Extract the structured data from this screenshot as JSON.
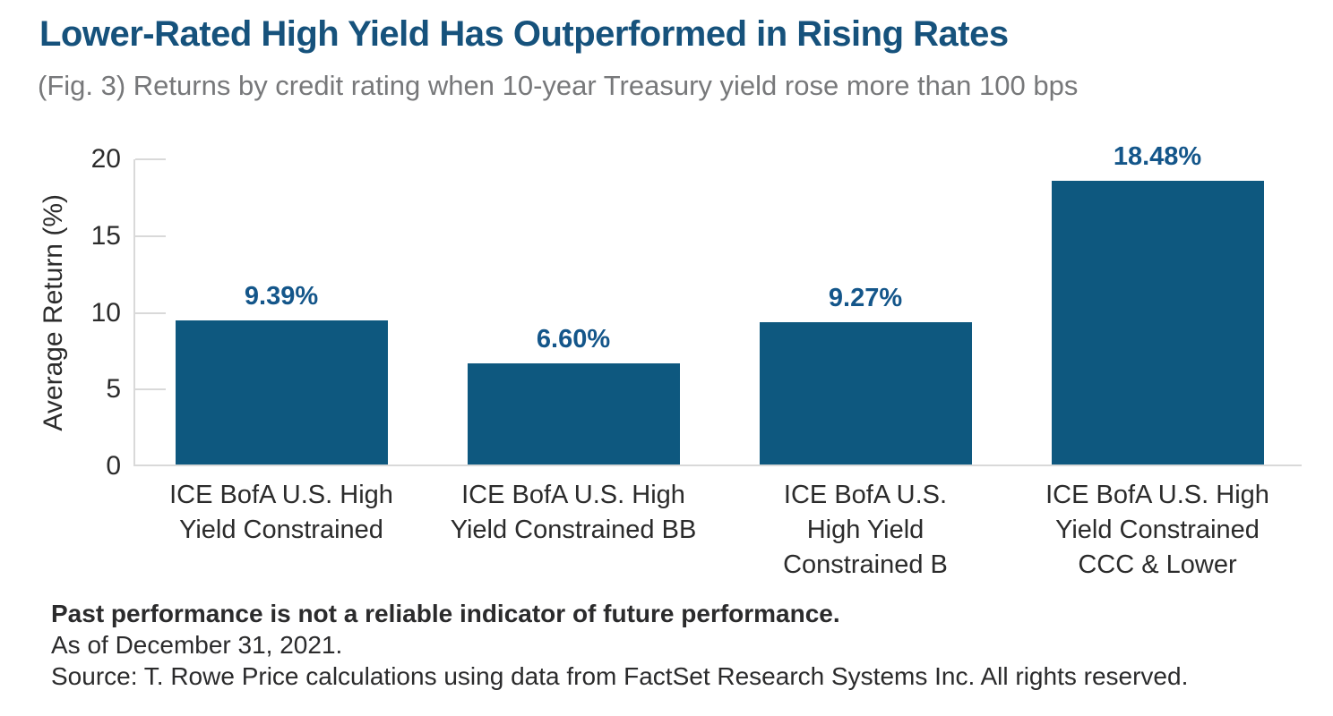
{
  "header": {
    "title": "Lower-Rated High Yield Has Outperformed in Rising Rates",
    "subtitle": "(Fig. 3) Returns by credit rating when 10-year Treasury yield rose more than 100 bps"
  },
  "chart_data": {
    "type": "bar",
    "title": "Lower-Rated High Yield Has Outperformed in Rising Rates",
    "subtitle": "(Fig. 3) Returns by credit rating when 10-year Treasury yield rose more than 100 bps",
    "xlabel": "",
    "ylabel": "Average Return (%)",
    "ylim": [
      0,
      20
    ],
    "yticks": [
      0,
      5,
      10,
      15,
      20
    ],
    "grid": "short tick marks only, no full gridlines",
    "legend": "none",
    "categories": [
      "ICE BofA U.S. High Yield Constrained",
      "ICE BofA U.S. High Yield Constrained BB",
      "ICE BofA U.S. High Yield Constrained B",
      "ICE BofA U.S. High Yield Constrained CCC & Lower"
    ],
    "category_lines": [
      [
        "ICE BofA U.S. High",
        "Yield Constrained"
      ],
      [
        "ICE BofA U.S. High",
        "Yield Constrained BB"
      ],
      [
        "ICE BofA U.S.",
        "High Yield",
        "Constrained B"
      ],
      [
        "ICE BofA U.S. High",
        "Yield Constrained",
        "CCC & Lower"
      ]
    ],
    "values": [
      9.39,
      6.6,
      9.27,
      18.48
    ],
    "value_labels": [
      "9.39%",
      "6.60%",
      "9.27%",
      "18.48%"
    ]
  },
  "footer": {
    "note": "Past performance is not a reliable indicator of future performance.",
    "as_of": "As of December 31, 2021.",
    "source": "Source: T. Rowe Price calculations using data from FactSet Research Systems Inc. All rights reserved."
  },
  "colors": {
    "bar": "#0E587F",
    "title": "#16527C",
    "subtitle": "#77787A",
    "value_label": "#14568A",
    "axis_line": "#D9D9D9",
    "axis_text": "#2B2B2B",
    "footer_text": "#2B2B2C"
  }
}
